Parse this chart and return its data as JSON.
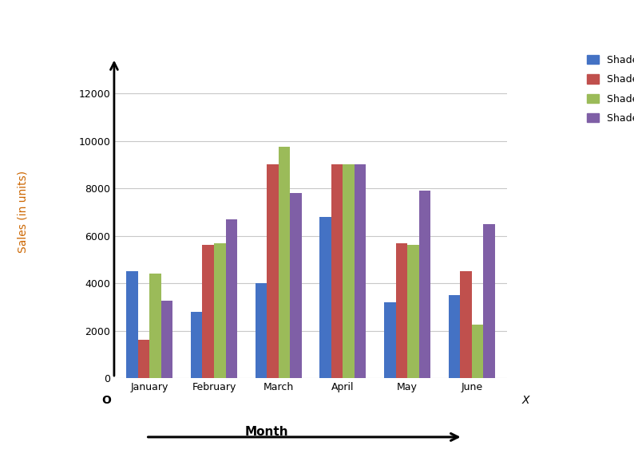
{
  "categories": [
    "January",
    "February",
    "March",
    "April",
    "May",
    "June"
  ],
  "series": {
    "Shade 1": [
      4500,
      2800,
      4000,
      6800,
      3200,
      3500
    ],
    "Shade 2": [
      1600,
      5600,
      9000,
      9000,
      5700,
      4500
    ],
    "Shade 3": [
      4400,
      5700,
      9750,
      9000,
      5600,
      2250
    ],
    "Shade 4": [
      3250,
      6700,
      7800,
      9000,
      7900,
      6500
    ]
  },
  "colors": {
    "Shade 1": "#4472C4",
    "Shade 2": "#C0504D",
    "Shade 3": "#9BBB59",
    "Shade 4": "#7F5FA6"
  },
  "ylabel": "Sales (in units)",
  "xlabel_arrow": "Month",
  "ylim": [
    0,
    14000
  ],
  "yticks": [
    0,
    2000,
    4000,
    6000,
    8000,
    10000,
    12000
  ],
  "background_color": "#ffffff",
  "grid_color": "#c8c8c8",
  "bar_width": 0.18,
  "figsize": [
    7.94,
    5.78
  ],
  "dpi": 100
}
